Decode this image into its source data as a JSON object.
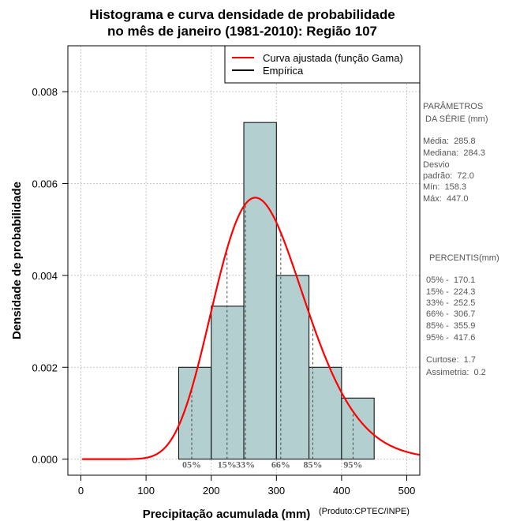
{
  "chart_data": {
    "type": "histogram",
    "title": [
      "Histograma e curva densidade de probabilidade",
      "no mês de janeiro (1981-2010): Região 107"
    ],
    "xlabel": "Precipitação acumulada (mm)",
    "ylabel": "Densidade de probabilidade",
    "credit": "(Produto:CPTEC/INPE)",
    "xlim": [
      -20,
      520
    ],
    "ylim": [
      -0.00035,
      0.009
    ],
    "xticks": [
      0,
      100,
      200,
      300,
      400,
      500
    ],
    "yticks": [
      0.0,
      0.002,
      0.004,
      0.006,
      0.008
    ],
    "ytick_labels": [
      "0.000",
      "0.002",
      "0.004",
      "0.006",
      "0.008"
    ],
    "grid": true,
    "bins": [
      {
        "x0": 150,
        "x1": 200,
        "density": 0.002
      },
      {
        "x0": 200,
        "x1": 250,
        "density": 0.00333
      },
      {
        "x0": 250,
        "x1": 300,
        "density": 0.00733
      },
      {
        "x0": 300,
        "x1": 350,
        "density": 0.004
      },
      {
        "x0": 350,
        "x1": 400,
        "density": 0.002
      },
      {
        "x0": 400,
        "x1": 450,
        "density": 0.00133
      }
    ],
    "bar_color": "#b3cfcf",
    "curve_color": "#ff0000",
    "gamma_fit": {
      "mean": 285.8,
      "sd": 72.0
    },
    "legend": [
      {
        "label": "Curva ajustada (função Gama)",
        "color": "#ff0000"
      },
      {
        "label": "Empírica",
        "color": "#000000"
      }
    ],
    "legend_position": "top-right",
    "percentile_markers": [
      {
        "label": "05%",
        "value": 170.1
      },
      {
        "label": "15%",
        "value": 224.3
      },
      {
        "label": "33%",
        "value": 252.5
      },
      {
        "label": "66%",
        "value": 306.7
      },
      {
        "label": "85%",
        "value": 355.9
      },
      {
        "label": "95%",
        "value": 417.6
      }
    ]
  },
  "side_panel": {
    "params_title": [
      "PARÂMETROS",
      " DA SÉRIE (mm)"
    ],
    "params": [
      "Média:  285.8",
      "Mediana:  284.3",
      "Desvio",
      "padrão:  72.0",
      "Mín:  158.3",
      "Máx:  447.0"
    ],
    "percentis_title": "PERCENTIS(mm)",
    "percentis": [
      "05% -  170.1",
      "15% -  224.3",
      "33% -  252.5",
      "66% -  306.7",
      "85% -  355.9",
      "95% -  417.6"
    ],
    "extra": [
      "Curtose:  1.7",
      "Assimetria:  0.2"
    ]
  }
}
